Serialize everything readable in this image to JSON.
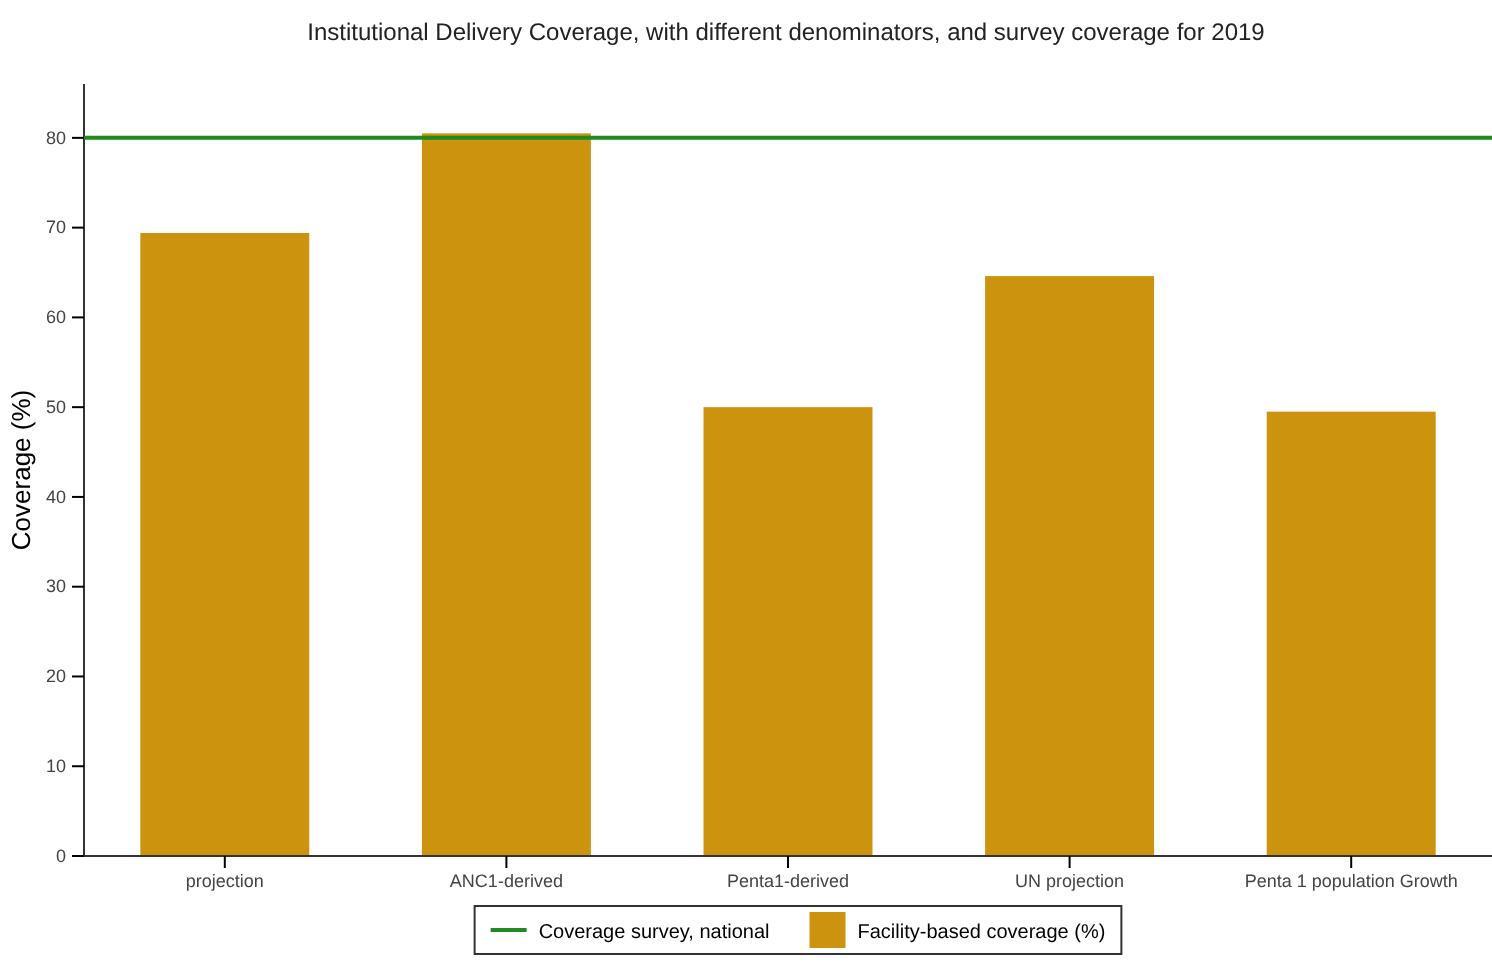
{
  "chart_data": {
    "type": "bar",
    "title": "Institutional Delivery Coverage, with different denominators, and survey coverage for 2019",
    "ylabel": "Coverage (%)",
    "categories": [
      "projection",
      "ANC1-derived",
      "Penta1-derived",
      "UN projection",
      "Penta 1 population Growth"
    ],
    "series": [
      {
        "name": "Facility-based coverage (%)",
        "color": "#cc940e",
        "values": [
          69.4,
          80.5,
          50,
          64.6,
          49.5
        ]
      }
    ],
    "ylim": [
      0,
      86
    ],
    "yticks": [
      0,
      10,
      20,
      30,
      40,
      50,
      60,
      70,
      80
    ],
    "grid": false,
    "legend": "bottom",
    "ref_lines": [
      {
        "axis": "y",
        "value": 80,
        "label": "Coverage survey, national",
        "color": "#1f8a1f"
      }
    ]
  }
}
